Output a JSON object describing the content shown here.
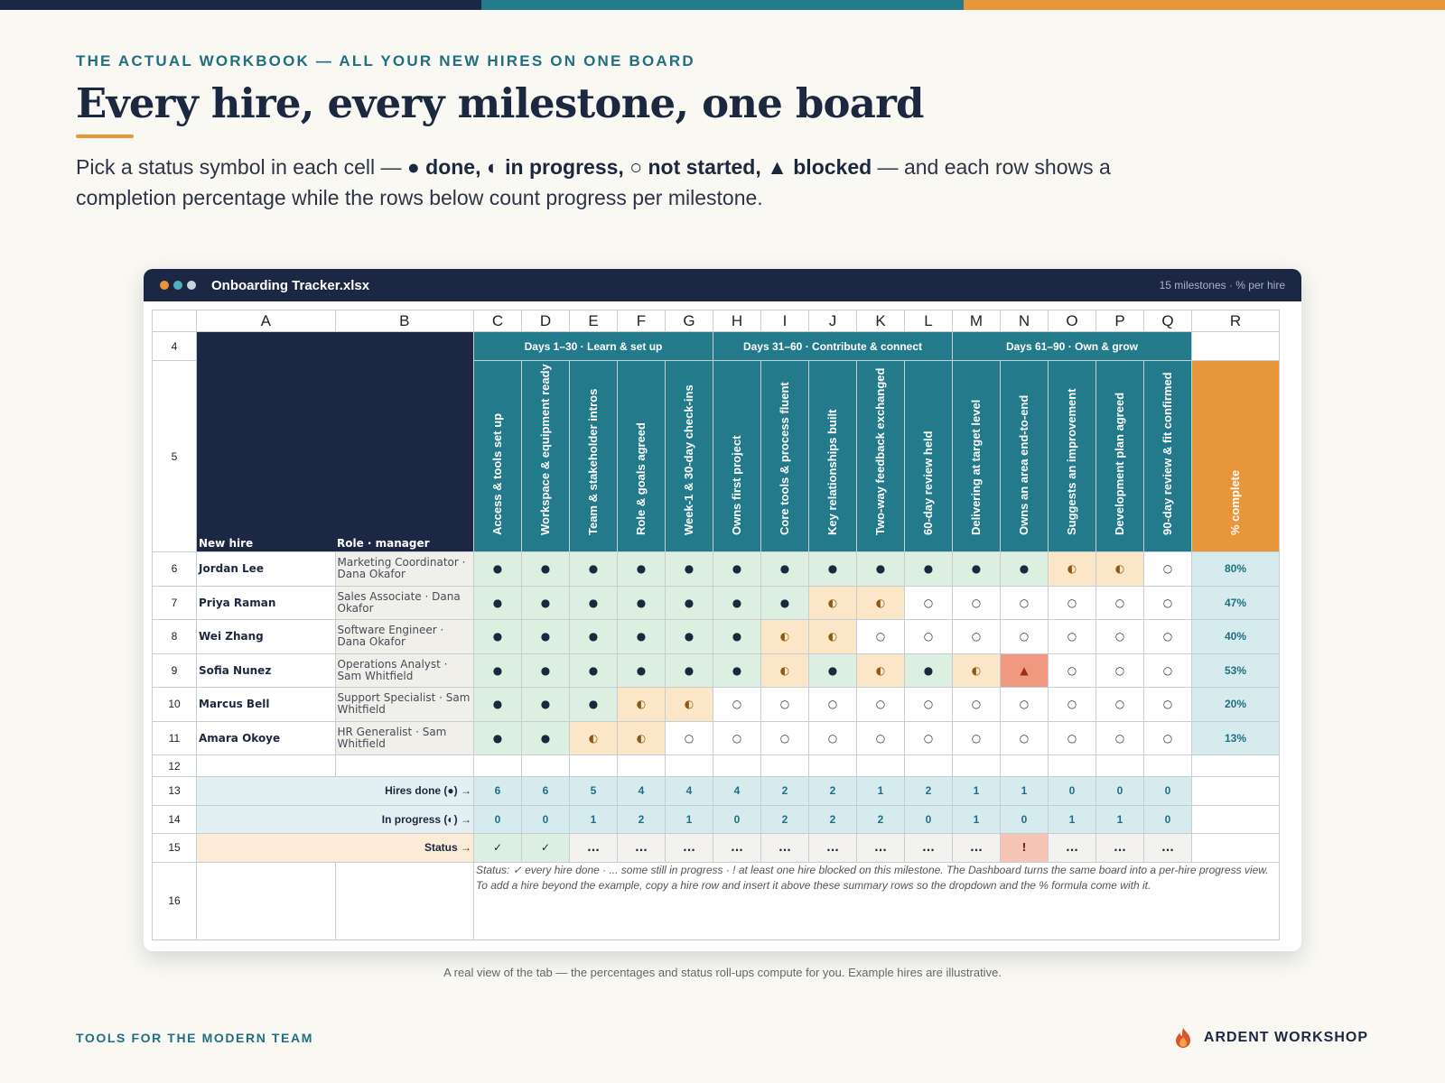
{
  "colors": {
    "navy": "#1c2744",
    "teal": "#237a8a",
    "orange": "#e8963a",
    "top_bar": [
      "#1c2744",
      "#237a8a",
      "#e8963a"
    ]
  },
  "eyebrow": "THE ACTUAL WORKBOOK — ALL YOUR NEW HIRES ON ONE BOARD",
  "headline": "Every hire, every milestone, one board",
  "lede": {
    "t1": "Pick a status symbol in each cell — ",
    "b1": "● done, ◐ in progress, ○ not started, ▲ blocked",
    "t2": " — and each row shows a completion percentage while the rows below count progress per milestone."
  },
  "window": {
    "file_name": "Onboarding Tracker.xlsx",
    "meta": "15 milestones · % per hire",
    "dot_colors": [
      "#e8963a",
      "#4fb0c0",
      "#c9d2dd"
    ]
  },
  "sheet": {
    "col_letters": [
      "A",
      "B",
      "C",
      "D",
      "E",
      "F",
      "G",
      "H",
      "I",
      "J",
      "K",
      "L",
      "M",
      "N",
      "O",
      "P",
      "Q",
      "R"
    ],
    "row_nums": [
      "4",
      "5",
      "6",
      "7",
      "8",
      "9",
      "10",
      "11",
      "12",
      "13",
      "14",
      "15",
      "16"
    ],
    "phases": [
      "Days 1–30 · Learn & set up",
      "Days 31–60 · Contribute & connect",
      "Days 61–90 · Own & grow"
    ],
    "header_a": "New hire",
    "header_b": "Role · manager",
    "milestones": [
      "Access & tools set up",
      "Workspace & equipment ready",
      "Team & stakeholder intros",
      "Role & goals agreed",
      "Week-1 & 30-day check-ins",
      "Owns first project",
      "Core tools & process fluent",
      "Key relationships built",
      "Two-way feedback exchanged",
      "60-day review held",
      "Delivering at target level",
      "Owns an area end-to-end",
      "Suggests an improvement",
      "Development plan agreed",
      "90-day review & fit confirmed"
    ],
    "pct_header": "% complete",
    "hires": [
      {
        "name": "Jordan Lee",
        "role": "Marketing Coordinator · Dana Okafor",
        "status": [
          "●",
          "●",
          "●",
          "●",
          "●",
          "●",
          "●",
          "●",
          "●",
          "●",
          "●",
          "●",
          "◐",
          "◐",
          "○"
        ],
        "pct": "80%"
      },
      {
        "name": "Priya Raman",
        "role": "Sales Associate · Dana Okafor",
        "status": [
          "●",
          "●",
          "●",
          "●",
          "●",
          "●",
          "●",
          "◐",
          "◐",
          "○",
          "○",
          "○",
          "○",
          "○",
          "○"
        ],
        "pct": "47%"
      },
      {
        "name": "Wei Zhang",
        "role": "Software Engineer · Dana Okafor",
        "status": [
          "●",
          "●",
          "●",
          "●",
          "●",
          "●",
          "◐",
          "◐",
          "○",
          "○",
          "○",
          "○",
          "○",
          "○",
          "○"
        ],
        "pct": "40%"
      },
      {
        "name": "Sofia Nunez",
        "role": "Operations Analyst · Sam Whitfield",
        "status": [
          "●",
          "●",
          "●",
          "●",
          "●",
          "●",
          "◐",
          "●",
          "◐",
          "●",
          "◐",
          "▲",
          "○",
          "○",
          "○"
        ],
        "pct": "53%"
      },
      {
        "name": "Marcus Bell",
        "role": "Support Specialist · Sam Whitfield",
        "status": [
          "●",
          "●",
          "●",
          "◐",
          "◐",
          "○",
          "○",
          "○",
          "○",
          "○",
          "○",
          "○",
          "○",
          "○",
          "○"
        ],
        "pct": "20%"
      },
      {
        "name": "Amara Okoye",
        "role": "HR Generalist · Sam Whitfield",
        "status": [
          "●",
          "●",
          "◐",
          "◐",
          "○",
          "○",
          "○",
          "○",
          "○",
          "○",
          "○",
          "○",
          "○",
          "○",
          "○"
        ],
        "pct": "13%"
      }
    ],
    "summary": [
      {
        "label": "Hires done (●) →",
        "values": [
          "6",
          "6",
          "5",
          "4",
          "4",
          "4",
          "2",
          "2",
          "1",
          "2",
          "1",
          "1",
          "0",
          "0",
          "0"
        ]
      },
      {
        "label": "In progress (◐) →",
        "values": [
          "0",
          "0",
          "1",
          "2",
          "1",
          "0",
          "2",
          "2",
          "2",
          "0",
          "1",
          "0",
          "1",
          "1",
          "0"
        ]
      }
    ],
    "status_row": {
      "label": "Status →",
      "values": [
        "✓",
        "✓",
        "...",
        "...",
        "...",
        "...",
        "...",
        "...",
        "...",
        "...",
        "...",
        "!",
        "...",
        "...",
        "..."
      ]
    },
    "note": "Status:  ✓ every hire done   ·   ... some still in progress   ·   ! at least one hire blocked on this milestone.  The Dashboard turns the same board into a per-hire progress view.  To add a hire beyond the example, copy a hire row and insert it above these summary rows so the dropdown and the % formula come with it."
  },
  "caption": "A real view of the tab — the percentages and status roll-ups compute for you. Example hires are illustrative.",
  "footer_left": "TOOLS FOR THE MODERN TEAM",
  "brand": "ARDENT WORKSHOP",
  "brand_icon": "flame-logo-icon"
}
